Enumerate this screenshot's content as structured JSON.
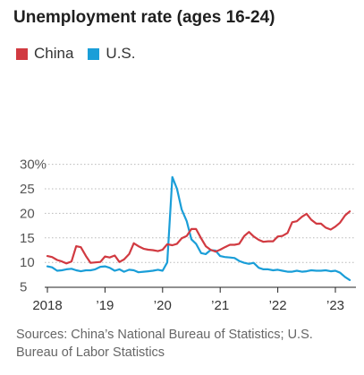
{
  "title": "Unemployment rate (ages 16-24)",
  "source": "Sources: China’s National Bureau of Statistics; U.S. Bureau of Labor Statistics",
  "chart_data": {
    "type": "line",
    "title": "Unemployment rate (ages 16-24)",
    "xlabel": "",
    "ylabel": "",
    "ylim": [
      5,
      30
    ],
    "xlim": [
      2018.0,
      2023.33
    ],
    "grid": true,
    "legend_position": "top-left",
    "y_ticks": [
      5,
      10,
      15,
      20,
      25,
      30
    ],
    "y_tick_labels": [
      "5",
      "10",
      "15",
      "20",
      "25",
      "30%"
    ],
    "x_ticks": [
      2018,
      2019,
      2020,
      2021,
      2022,
      2023
    ],
    "x_tick_labels": [
      "2018",
      "’19",
      "’20",
      "’21",
      "’22",
      "’23"
    ],
    "series": [
      {
        "name": "China",
        "color": "#d13a41",
        "x": [
          2018.0,
          2018.08,
          2018.17,
          2018.25,
          2018.33,
          2018.42,
          2018.5,
          2018.58,
          2018.67,
          2018.75,
          2018.83,
          2018.92,
          2019.0,
          2019.08,
          2019.17,
          2019.25,
          2019.33,
          2019.42,
          2019.5,
          2019.58,
          2019.67,
          2019.75,
          2019.83,
          2019.92,
          2020.0,
          2020.08,
          2020.17,
          2020.25,
          2020.33,
          2020.42,
          2020.5,
          2020.58,
          2020.67,
          2020.75,
          2020.83,
          2020.92,
          2021.0,
          2021.08,
          2021.17,
          2021.25,
          2021.33,
          2021.42,
          2021.5,
          2021.58,
          2021.67,
          2021.75,
          2021.83,
          2021.92,
          2022.0,
          2022.08,
          2022.17,
          2022.25,
          2022.33,
          2022.42,
          2022.5,
          2022.58,
          2022.67,
          2022.75,
          2022.83,
          2022.92,
          2023.0,
          2023.08,
          2023.17,
          2023.25
        ],
        "values": [
          11.3,
          11.1,
          10.5,
          10.2,
          9.8,
          10.2,
          13.3,
          13.1,
          11.3,
          9.9,
          10.0,
          10.1,
          11.2,
          11.0,
          11.4,
          10.1,
          10.6,
          11.7,
          13.9,
          13.3,
          12.8,
          12.6,
          12.5,
          12.3,
          12.6,
          13.7,
          13.5,
          13.8,
          14.9,
          15.4,
          16.8,
          16.8,
          14.9,
          13.3,
          12.6,
          12.2,
          12.6,
          13.1,
          13.6,
          13.6,
          13.8,
          15.4,
          16.2,
          15.3,
          14.6,
          14.2,
          14.3,
          14.3,
          15.3,
          15.4,
          16.0,
          18.2,
          18.4,
          19.3,
          19.9,
          18.7,
          17.9,
          17.9,
          17.1,
          16.7,
          17.3,
          18.1,
          19.6,
          20.4
        ]
      },
      {
        "name": "U.S.",
        "color": "#1a9ed8",
        "x": [
          2018.0,
          2018.08,
          2018.17,
          2018.25,
          2018.33,
          2018.42,
          2018.5,
          2018.58,
          2018.67,
          2018.75,
          2018.83,
          2018.92,
          2019.0,
          2019.08,
          2019.17,
          2019.25,
          2019.33,
          2019.42,
          2019.5,
          2019.58,
          2019.67,
          2019.75,
          2019.83,
          2019.92,
          2020.0,
          2020.08,
          2020.17,
          2020.25,
          2020.33,
          2020.42,
          2020.5,
          2020.58,
          2020.67,
          2020.75,
          2020.83,
          2020.92,
          2021.0,
          2021.08,
          2021.17,
          2021.25,
          2021.33,
          2021.42,
          2021.5,
          2021.58,
          2021.67,
          2021.75,
          2021.83,
          2021.92,
          2022.0,
          2022.08,
          2022.17,
          2022.25,
          2022.33,
          2022.42,
          2022.5,
          2022.58,
          2022.67,
          2022.75,
          2022.83,
          2022.92,
          2023.0,
          2023.08,
          2023.17,
          2023.25
        ],
        "values": [
          9.2,
          9.0,
          8.3,
          8.4,
          8.6,
          8.7,
          8.4,
          8.2,
          8.4,
          8.4,
          8.6,
          9.1,
          9.2,
          8.9,
          8.3,
          8.6,
          8.1,
          8.5,
          8.4,
          8.0,
          8.1,
          8.2,
          8.3,
          8.5,
          8.3,
          10.0,
          27.4,
          25.0,
          20.8,
          18.4,
          14.7,
          13.8,
          11.9,
          11.7,
          12.5,
          12.4,
          11.3,
          11.1,
          11.0,
          10.9,
          10.3,
          9.9,
          9.7,
          9.9,
          8.9,
          8.6,
          8.6,
          8.4,
          8.5,
          8.3,
          8.1,
          8.1,
          8.3,
          8.1,
          8.2,
          8.4,
          8.3,
          8.3,
          8.4,
          8.2,
          8.3,
          7.9,
          7.0,
          6.4
        ]
      }
    ]
  }
}
